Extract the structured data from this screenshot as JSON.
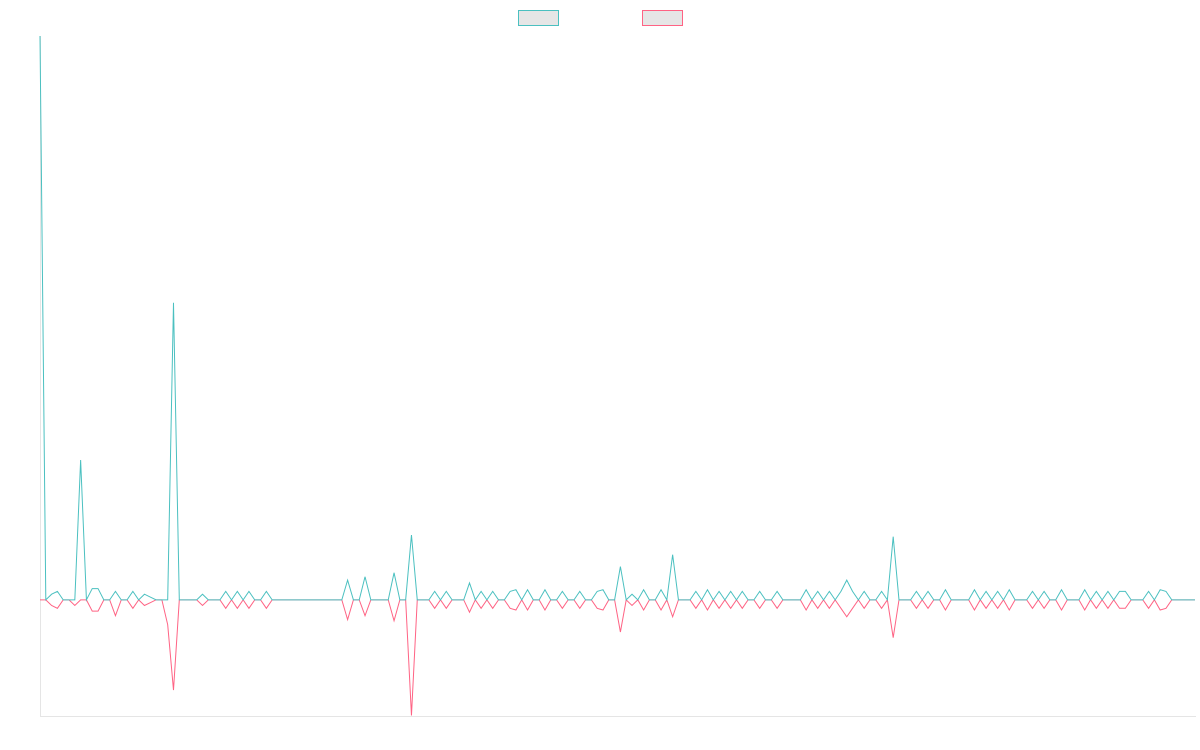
{
  "chart_data": {
    "type": "line",
    "series": [
      {
        "color": "#4bc0c0",
        "values": [
          100,
          0,
          1,
          1.5,
          0,
          0,
          0,
          24.8,
          0,
          2,
          2,
          0,
          0,
          1.5,
          0,
          0,
          1.5,
          0,
          1,
          0.5,
          0,
          0,
          0,
          52.7,
          0,
          0,
          0,
          0,
          1,
          0,
          0,
          0,
          1.5,
          0,
          1.5,
          0,
          1.5,
          0,
          0,
          1.5,
          0,
          0,
          0,
          0,
          0,
          0,
          0,
          0,
          0,
          0,
          0,
          0,
          0,
          3.5,
          0,
          0,
          4.1,
          0,
          0,
          0,
          0,
          4.8,
          0,
          0,
          11.5,
          0,
          0,
          0,
          1.5,
          0,
          1.5,
          0,
          0,
          0,
          3,
          0,
          1.5,
          0,
          1.5,
          0,
          0,
          1.5,
          1.8,
          0,
          1.8,
          0,
          0,
          1.8,
          0,
          0,
          1.5,
          0,
          0,
          1.5,
          0,
          0,
          1.5,
          1.8,
          0,
          0,
          5.9,
          0,
          1,
          0,
          1.8,
          0,
          0,
          1.8,
          0,
          8,
          0,
          0,
          0,
          1.5,
          0,
          1.8,
          0,
          1.5,
          0,
          1.5,
          0,
          1.5,
          0,
          0,
          1.5,
          0,
          0,
          1.5,
          0,
          0,
          0,
          0,
          1.8,
          0,
          1.5,
          0,
          1.5,
          0,
          1.5,
          3.5,
          1.5,
          0,
          1.5,
          0,
          0,
          1.5,
          0,
          11.2,
          0,
          0,
          0,
          1.5,
          0,
          1.5,
          0,
          0,
          1.8,
          0,
          0,
          0,
          0,
          1.8,
          0,
          1.5,
          0,
          1.5,
          0,
          1.8,
          0,
          0,
          0,
          1.5,
          0,
          1.5,
          0,
          0,
          1.8,
          0,
          0,
          0,
          1.8,
          0,
          1.5,
          0,
          1.5,
          0,
          1.5,
          1.5,
          0,
          0,
          0,
          1.5,
          0,
          1.8,
          1.5,
          0,
          0,
          0,
          0,
          0
        ]
      },
      {
        "color": "#ff6384",
        "values": [
          0,
          0,
          -1,
          -1.5,
          0,
          0,
          -1,
          0,
          0,
          -2,
          -2,
          0,
          0,
          -2.8,
          0,
          0,
          -1.5,
          0,
          -1,
          -0.5,
          0,
          0,
          -4.4,
          -16,
          0,
          0,
          0,
          0,
          -1,
          0,
          0,
          0,
          -1.5,
          0,
          -1.5,
          0,
          -1.5,
          0,
          0,
          -1.5,
          0,
          0,
          0,
          0,
          0,
          0,
          0,
          0,
          0,
          0,
          0,
          0,
          0,
          -3.5,
          0,
          0,
          -2.8,
          0,
          0,
          0,
          0,
          -3.7,
          0,
          0,
          -20.5,
          0,
          0,
          0,
          -1.5,
          0,
          -1.5,
          0,
          0,
          0,
          -2.2,
          0,
          -1.5,
          0,
          -1.5,
          0,
          0,
          -1.5,
          -1.8,
          0,
          -1.8,
          0,
          0,
          -1.8,
          0,
          0,
          -1.5,
          0,
          0,
          -1.5,
          0,
          0,
          -1.5,
          -1.8,
          0,
          0,
          -5.7,
          0,
          -1,
          0,
          -1.8,
          0,
          0,
          -1.8,
          0,
          -3,
          0,
          0,
          0,
          -1.5,
          0,
          -1.8,
          0,
          -1.5,
          0,
          -1.5,
          0,
          -1.5,
          0,
          0,
          -1.5,
          0,
          0,
          -1.5,
          0,
          0,
          0,
          0,
          -1.8,
          0,
          -1.5,
          0,
          -1.5,
          0,
          -1.5,
          -3,
          -1.5,
          0,
          -1.5,
          0,
          0,
          -1.5,
          0,
          -6.7,
          0,
          0,
          0,
          -1.5,
          0,
          -1.5,
          0,
          0,
          -1.8,
          0,
          0,
          0,
          0,
          -1.8,
          0,
          -1.5,
          0,
          -1.5,
          0,
          -1.8,
          0,
          0,
          0,
          -1.5,
          0,
          -1.5,
          0,
          0,
          -1.8,
          0,
          0,
          0,
          -1.8,
          0,
          -1.5,
          0,
          -1.5,
          0,
          -1.5,
          -1.5,
          0,
          0,
          0,
          -1.5,
          0,
          -1.8,
          -1.5,
          0,
          0,
          0,
          0,
          0
        ]
      }
    ],
    "ylim": [
      -20.6,
      100
    ],
    "legend": "top"
  }
}
